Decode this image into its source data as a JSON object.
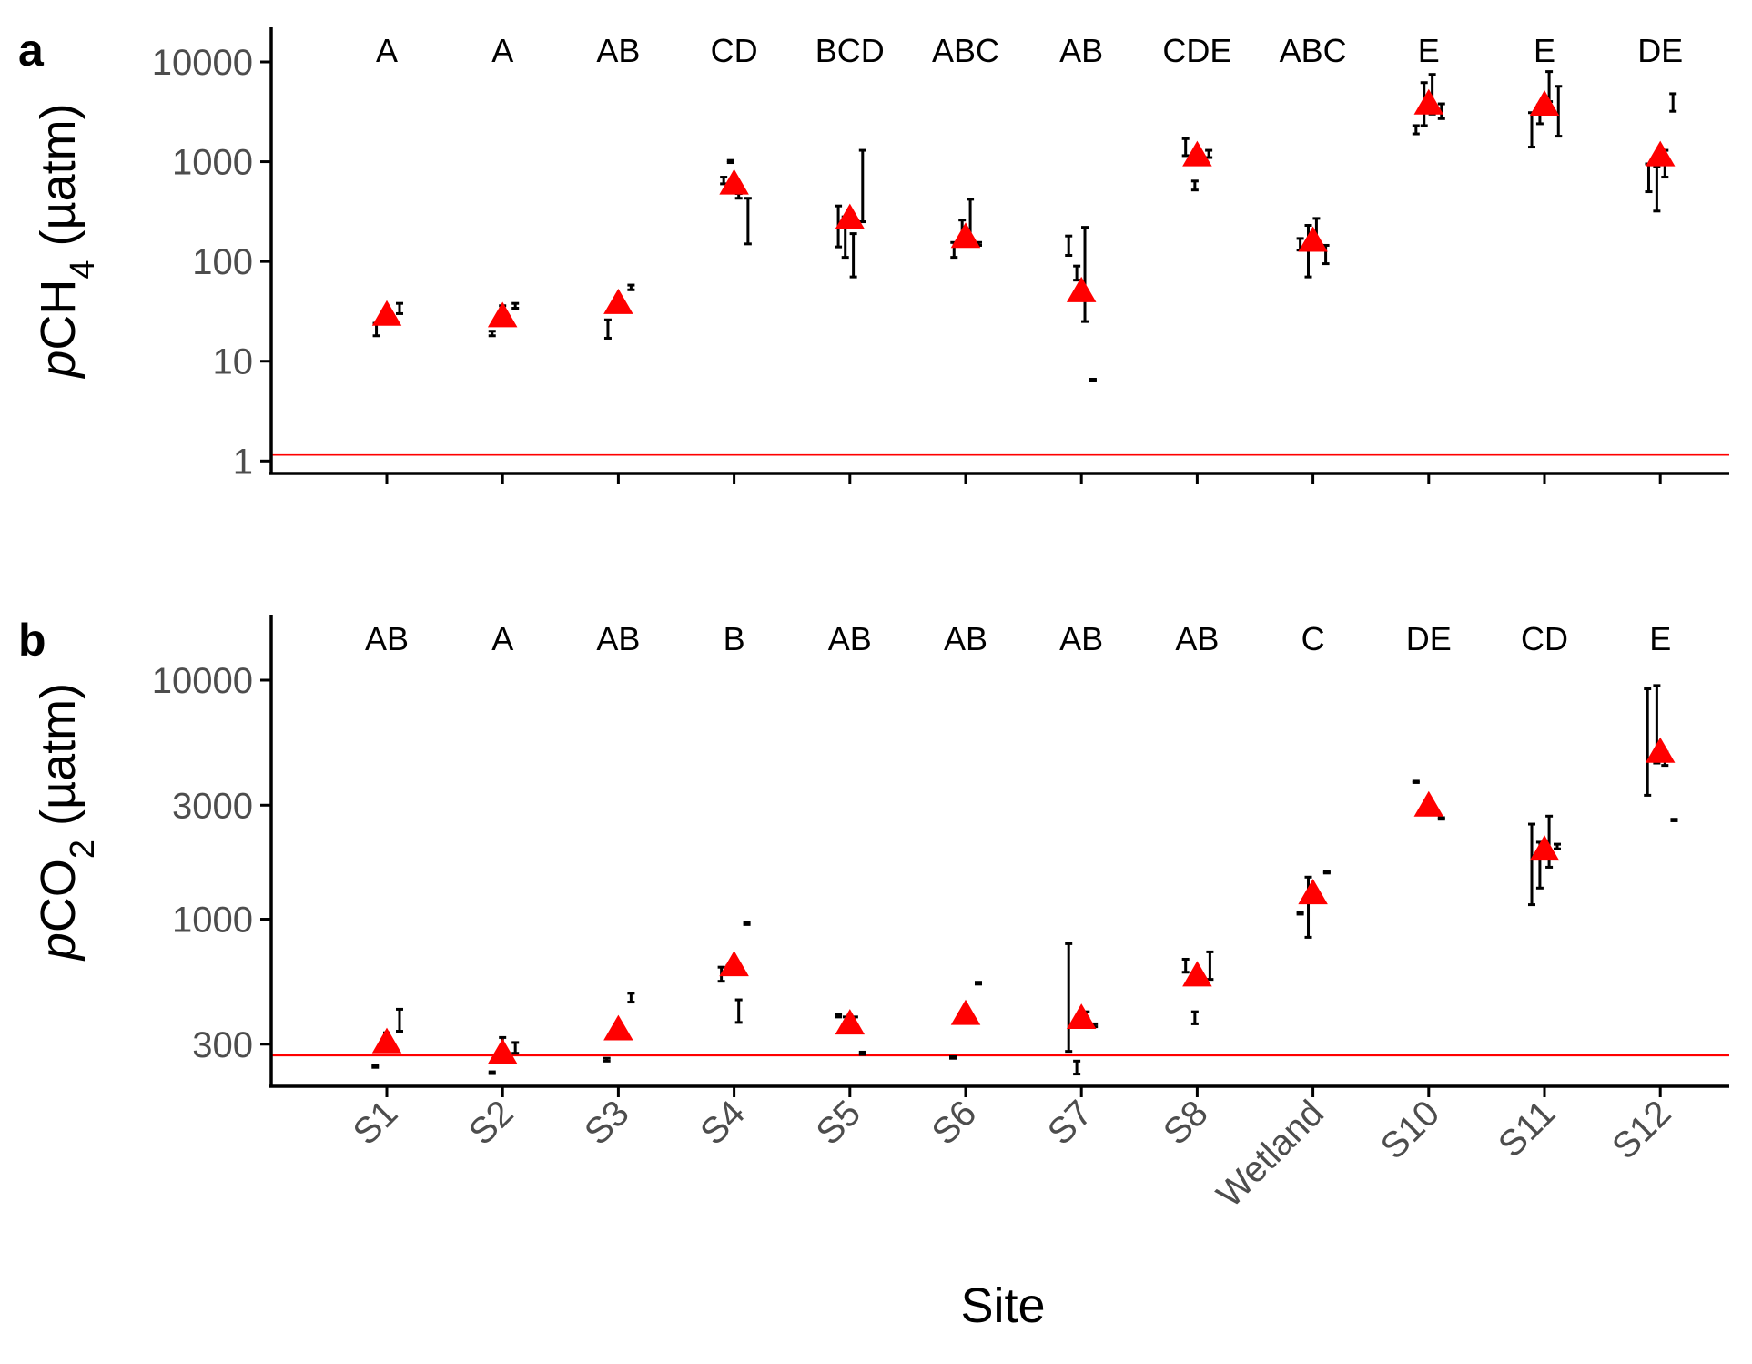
{
  "chart_data": [
    {
      "panel": "a",
      "type": "scatter",
      "y_scale": "log10",
      "ylim": [
        0.75,
        20000
      ],
      "yticks": [
        1,
        10,
        100,
        1000,
        10000
      ],
      "ylabel": {
        "italic": "p",
        "main": "CH",
        "sub": "4",
        "unit": " (µatm)"
      },
      "reference_line": {
        "y": 1.15,
        "color": "#ff0000"
      },
      "categories": [
        "S1",
        "S2",
        "S3",
        "S4",
        "S5",
        "S6",
        "S7",
        "S8",
        "Wetland",
        "S10",
        "S11",
        "S12"
      ],
      "group_letters": [
        "A",
        "A",
        "AB",
        "CD",
        "BCD",
        "ABC",
        "AB",
        "CDE",
        "ABC",
        "E",
        "E",
        "DE"
      ],
      "mean": [
        29,
        28,
        38,
        600,
        270,
        175,
        50,
        1150,
        160,
        3800,
        3700,
        1150
      ],
      "replicates": [
        [
          {
            "dx": -0.09,
            "y": 21,
            "lo": 18,
            "hi": 24
          },
          {
            "dx": 0.0,
            "y": 27,
            "lo": 25,
            "hi": 29
          },
          {
            "dx": 0.11,
            "y": 34,
            "lo": 30,
            "hi": 38
          }
        ],
        [
          {
            "dx": -0.09,
            "y": 19,
            "lo": 18,
            "hi": 20
          },
          {
            "dx": 0.0,
            "y": 30,
            "lo": 24,
            "hi": 36
          },
          {
            "dx": 0.11,
            "y": 36,
            "lo": 34,
            "hi": 38
          }
        ],
        [
          {
            "dx": -0.09,
            "y": 22,
            "lo": 17,
            "hi": 26
          },
          {
            "dx": 0.0,
            "y": 38,
            "lo": 36,
            "hi": 40
          },
          {
            "dx": 0.11,
            "y": 55,
            "lo": 52,
            "hi": 58
          }
        ],
        [
          {
            "dx": -0.09,
            "y": 650,
            "lo": 600,
            "hi": 700
          },
          {
            "dx": -0.03,
            "y": 1000,
            "lo": 980,
            "hi": 1030
          },
          {
            "dx": 0.04,
            "y": 450,
            "lo": 430,
            "hi": 480
          },
          {
            "dx": 0.12,
            "y": 280,
            "lo": 150,
            "hi": 430
          }
        ],
        [
          {
            "dx": -0.1,
            "y": 230,
            "lo": 140,
            "hi": 360
          },
          {
            "dx": -0.04,
            "y": 180,
            "lo": 110,
            "hi": 280
          },
          {
            "dx": 0.03,
            "y": 140,
            "lo": 70,
            "hi": 190
          },
          {
            "dx": 0.11,
            "y": 400,
            "lo": 250,
            "hi": 1300
          }
        ],
        [
          {
            "dx": -0.1,
            "y": 130,
            "lo": 110,
            "hi": 155
          },
          {
            "dx": -0.03,
            "y": 200,
            "lo": 150,
            "hi": 260
          },
          {
            "dx": 0.04,
            "y": 280,
            "lo": 160,
            "hi": 420
          },
          {
            "dx": 0.11,
            "y": 150,
            "lo": 145,
            "hi": 155
          }
        ],
        [
          {
            "dx": -0.11,
            "y": 140,
            "lo": 115,
            "hi": 180
          },
          {
            "dx": -0.04,
            "y": 75,
            "lo": 65,
            "hi": 90
          },
          {
            "dx": 0.03,
            "y": 80,
            "lo": 25,
            "hi": 220
          },
          {
            "dx": 0.1,
            "y": 6.5,
            "lo": 6.4,
            "hi": 6.6
          }
        ],
        [
          {
            "dx": -0.1,
            "y": 1400,
            "lo": 1150,
            "hi": 1700
          },
          {
            "dx": -0.02,
            "y": 580,
            "lo": 520,
            "hi": 640
          },
          {
            "dx": 0.1,
            "y": 1200,
            "lo": 1100,
            "hi": 1300
          }
        ],
        [
          {
            "dx": -0.11,
            "y": 150,
            "lo": 130,
            "hi": 170
          },
          {
            "dx": -0.04,
            "y": 140,
            "lo": 70,
            "hi": 230
          },
          {
            "dx": 0.03,
            "y": 200,
            "lo": 160,
            "hi": 270
          },
          {
            "dx": 0.11,
            "y": 130,
            "lo": 95,
            "hi": 145
          }
        ],
        [
          {
            "dx": -0.11,
            "y": 2100,
            "lo": 1900,
            "hi": 2300
          },
          {
            "dx": -0.04,
            "y": 3700,
            "lo": 2300,
            "hi": 6200
          },
          {
            "dx": 0.03,
            "y": 5000,
            "lo": 3000,
            "hi": 7500
          },
          {
            "dx": 0.11,
            "y": 3200,
            "lo": 2700,
            "hi": 3800
          }
        ],
        [
          {
            "dx": -0.11,
            "y": 2400,
            "lo": 1400,
            "hi": 3100
          },
          {
            "dx": -0.04,
            "y": 3000,
            "lo": 2400,
            "hi": 3700
          },
          {
            "dx": 0.04,
            "y": 5500,
            "lo": 4000,
            "hi": 8000
          },
          {
            "dx": 0.12,
            "y": 3000,
            "lo": 1800,
            "hi": 5700
          }
        ],
        [
          {
            "dx": -0.1,
            "y": 730,
            "lo": 500,
            "hi": 950
          },
          {
            "dx": -0.03,
            "y": 620,
            "lo": 320,
            "hi": 900
          },
          {
            "dx": 0.04,
            "y": 1000,
            "lo": 700,
            "hi": 1300
          },
          {
            "dx": 0.11,
            "y": 3800,
            "lo": 3200,
            "hi": 4800
          }
        ]
      ]
    },
    {
      "panel": "b",
      "type": "scatter",
      "y_scale": "log10",
      "ylim": [
        200,
        18000
      ],
      "yticks": [
        300,
        1000,
        3000,
        10000
      ],
      "ylabel": {
        "italic": "p",
        "main": "CO",
        "sub": "2",
        "unit": " (µatm)"
      },
      "reference_line": {
        "y": 270,
        "color": "#ff0000"
      },
      "categories": [
        "S1",
        "S2",
        "S3",
        "S4",
        "S5",
        "S6",
        "S7",
        "S8",
        "Wetland",
        "S10",
        "S11",
        "S12"
      ],
      "group_letters": [
        "AB",
        "A",
        "AB",
        "B",
        "AB",
        "AB",
        "AB",
        "AB",
        "C",
        "DE",
        "CD",
        "E"
      ],
      "mean": [
        305,
        275,
        345,
        640,
        365,
        400,
        385,
        580,
        1280,
        2980,
        1950,
        5000
      ],
      "replicates": [
        [
          {
            "dx": -0.1,
            "y": 242,
            "lo": 240,
            "hi": 245
          },
          {
            "dx": 0.0,
            "y": 310,
            "lo": 290,
            "hi": 335
          },
          {
            "dx": 0.11,
            "y": 375,
            "lo": 340,
            "hi": 420
          }
        ],
        [
          {
            "dx": -0.09,
            "y": 228,
            "lo": 226,
            "hi": 230
          },
          {
            "dx": 0.0,
            "y": 290,
            "lo": 270,
            "hi": 320
          },
          {
            "dx": 0.11,
            "y": 290,
            "lo": 275,
            "hi": 305
          }
        ],
        [
          {
            "dx": -0.1,
            "y": 258,
            "lo": 255,
            "hi": 262
          },
          {
            "dx": 0.0,
            "y": 330,
            "lo": 320,
            "hi": 345
          },
          {
            "dx": 0.11,
            "y": 470,
            "lo": 450,
            "hi": 490
          }
        ],
        [
          {
            "dx": -0.11,
            "y": 590,
            "lo": 550,
            "hi": 630
          },
          {
            "dx": -0.04,
            "y": 620,
            "lo": 600,
            "hi": 640
          },
          {
            "dx": 0.04,
            "y": 410,
            "lo": 370,
            "hi": 460
          },
          {
            "dx": 0.11,
            "y": 960,
            "lo": 950,
            "hi": 970
          }
        ],
        [
          {
            "dx": -0.1,
            "y": 395,
            "lo": 390,
            "hi": 400
          },
          {
            "dx": -0.03,
            "y": 380,
            "lo": 370,
            "hi": 390
          },
          {
            "dx": 0.04,
            "y": 370,
            "lo": 355,
            "hi": 390
          },
          {
            "dx": 0.11,
            "y": 275,
            "lo": 272,
            "hi": 278
          }
        ],
        [
          {
            "dx": -0.11,
            "y": 264,
            "lo": 262,
            "hi": 266
          },
          {
            "dx": -0.03,
            "y": 400,
            "lo": 395,
            "hi": 405
          },
          {
            "dx": 0.11,
            "y": 540,
            "lo": 535,
            "hi": 545
          }
        ],
        [
          {
            "dx": -0.11,
            "y": 500,
            "lo": 280,
            "hi": 790
          },
          {
            "dx": -0.04,
            "y": 240,
            "lo": 225,
            "hi": 255
          },
          {
            "dx": 0.04,
            "y": 395,
            "lo": 385,
            "hi": 410
          },
          {
            "dx": 0.11,
            "y": 360,
            "lo": 355,
            "hi": 365
          }
        ],
        [
          {
            "dx": -0.1,
            "y": 640,
            "lo": 600,
            "hi": 680
          },
          {
            "dx": -0.02,
            "y": 385,
            "lo": 365,
            "hi": 410
          },
          {
            "dx": 0.11,
            "y": 640,
            "lo": 560,
            "hi": 730
          }
        ],
        [
          {
            "dx": -0.11,
            "y": 1060,
            "lo": 1050,
            "hi": 1070
          },
          {
            "dx": -0.04,
            "y": 1100,
            "lo": 840,
            "hi": 1500
          },
          {
            "dx": 0.04,
            "y": 1200,
            "lo": 1180,
            "hi": 1230
          },
          {
            "dx": 0.12,
            "y": 1570,
            "lo": 1560,
            "hi": 1580
          }
        ],
        [
          {
            "dx": -0.11,
            "y": 3750,
            "lo": 3730,
            "hi": 3780
          },
          {
            "dx": -0.01,
            "y": 2900,
            "lo": 2850,
            "hi": 2950
          },
          {
            "dx": 0.04,
            "y": 2800,
            "lo": 2750,
            "hi": 2850
          },
          {
            "dx": 0.11,
            "y": 2640,
            "lo": 2620,
            "hi": 2660
          }
        ],
        [
          {
            "dx": -0.11,
            "y": 1800,
            "lo": 1150,
            "hi": 2500
          },
          {
            "dx": -0.04,
            "y": 1700,
            "lo": 1350,
            "hi": 2100
          },
          {
            "dx": 0.04,
            "y": 2050,
            "lo": 1650,
            "hi": 2700
          },
          {
            "dx": 0.11,
            "y": 2020,
            "lo": 1970,
            "hi": 2060
          }
        ],
        [
          {
            "dx": -0.11,
            "y": 5200,
            "lo": 3300,
            "hi": 9200
          },
          {
            "dx": -0.03,
            "y": 6500,
            "lo": 4500,
            "hi": 9500
          },
          {
            "dx": 0.04,
            "y": 4700,
            "lo": 4400,
            "hi": 5000
          },
          {
            "dx": 0.12,
            "y": 2600,
            "lo": 2580,
            "hi": 2620
          }
        ]
      ]
    }
  ],
  "xlabel": "Site"
}
